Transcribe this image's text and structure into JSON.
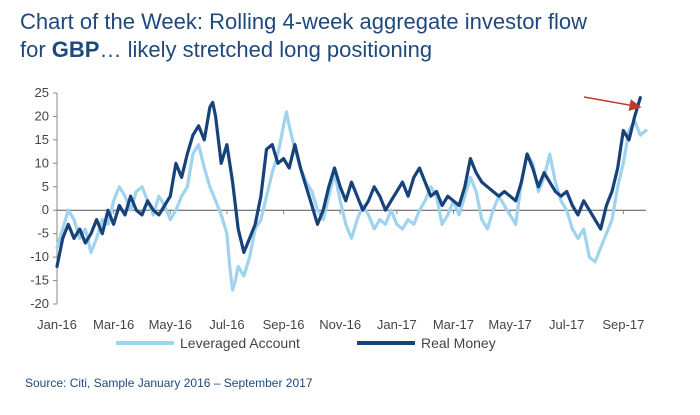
{
  "title": {
    "line1": "Chart of the Week:  Rolling 4-week aggregate investor flow",
    "line2_prefix": "for ",
    "line2_bold": "GBP",
    "line2_suffix": "… likely stretched long positioning"
  },
  "source": "Source: Citi, Sample January 2016 – September 2017",
  "colors": {
    "leveraged": "#9fd3ee",
    "real_money": "#17427a",
    "arrow": "#c0392b",
    "zero_line": "#555555"
  },
  "chart_data": {
    "type": "line",
    "title": "Rolling 4-week aggregate investor flow for GBP",
    "xlabel": "",
    "ylabel": "",
    "ylim": [
      -20,
      25
    ],
    "y_ticks": [
      25,
      20,
      15,
      10,
      5,
      0,
      -5,
      -10,
      -15,
      -20
    ],
    "x_tick_labels": [
      "Jan-16",
      "Mar-16",
      "May-16",
      "Jul-16",
      "Sep-16",
      "Nov-16",
      "Jan-17",
      "Mar-17",
      "May-17",
      "Jul-17",
      "Sep-17"
    ],
    "x_axis_note": "x values are months since Jan-2016 (0 = Jan-16, 20 = Sep-17)",
    "legend": [
      "Leveraged Account",
      "Real Money"
    ],
    "legend_position": "bottom",
    "annotation": "arrow pointing to latest Real Money peak",
    "series": [
      {
        "name": "Leveraged Account",
        "points": [
          [
            0,
            -8
          ],
          [
            0.2,
            -4
          ],
          [
            0.4,
            0
          ],
          [
            0.6,
            -2
          ],
          [
            0.8,
            -6
          ],
          [
            1.0,
            -4
          ],
          [
            1.2,
            -9
          ],
          [
            1.4,
            -6
          ],
          [
            1.6,
            -2
          ],
          [
            1.8,
            -3
          ],
          [
            2.0,
            2
          ],
          [
            2.2,
            5
          ],
          [
            2.4,
            3
          ],
          [
            2.6,
            0
          ],
          [
            2.8,
            4
          ],
          [
            3.0,
            5
          ],
          [
            3.2,
            2
          ],
          [
            3.4,
            -1
          ],
          [
            3.6,
            3
          ],
          [
            3.8,
            1
          ],
          [
            4.0,
            -2
          ],
          [
            4.2,
            0
          ],
          [
            4.4,
            3
          ],
          [
            4.6,
            5
          ],
          [
            4.8,
            12
          ],
          [
            5.0,
            14
          ],
          [
            5.2,
            9
          ],
          [
            5.4,
            5
          ],
          [
            5.6,
            2
          ],
          [
            5.8,
            -1
          ],
          [
            6.0,
            -5
          ],
          [
            6.1,
            -12
          ],
          [
            6.2,
            -17
          ],
          [
            6.3,
            -15
          ],
          [
            6.4,
            -12
          ],
          [
            6.6,
            -14
          ],
          [
            6.8,
            -10
          ],
          [
            7.0,
            -4
          ],
          [
            7.2,
            -2
          ],
          [
            7.4,
            3
          ],
          [
            7.6,
            8
          ],
          [
            7.8,
            12
          ],
          [
            8.0,
            18
          ],
          [
            8.1,
            21
          ],
          [
            8.2,
            18
          ],
          [
            8.4,
            13
          ],
          [
            8.6,
            9
          ],
          [
            8.8,
            6
          ],
          [
            9.0,
            4
          ],
          [
            9.2,
            0
          ],
          [
            9.4,
            -2
          ],
          [
            9.6,
            3
          ],
          [
            9.8,
            8
          ],
          [
            10.0,
            2
          ],
          [
            10.2,
            -3
          ],
          [
            10.4,
            -6
          ],
          [
            10.6,
            -2
          ],
          [
            10.8,
            1
          ],
          [
            11.0,
            -1
          ],
          [
            11.2,
            -4
          ],
          [
            11.4,
            -2
          ],
          [
            11.6,
            -3
          ],
          [
            11.8,
            0
          ],
          [
            12.0,
            -3
          ],
          [
            12.2,
            -4
          ],
          [
            12.4,
            -2
          ],
          [
            12.6,
            -3
          ],
          [
            12.8,
            0
          ],
          [
            13.0,
            2
          ],
          [
            13.2,
            5
          ],
          [
            13.4,
            3
          ],
          [
            13.6,
            -3
          ],
          [
            13.8,
            -1
          ],
          [
            14.0,
            2
          ],
          [
            14.2,
            -1
          ],
          [
            14.4,
            3
          ],
          [
            14.6,
            7
          ],
          [
            14.8,
            4
          ],
          [
            15.0,
            -2
          ],
          [
            15.2,
            -4
          ],
          [
            15.4,
            0
          ],
          [
            15.6,
            3
          ],
          [
            15.8,
            1
          ],
          [
            16.0,
            -1
          ],
          [
            16.2,
            -3
          ],
          [
            16.4,
            6
          ],
          [
            16.6,
            12
          ],
          [
            16.8,
            10
          ],
          [
            17.0,
            4
          ],
          [
            17.2,
            7
          ],
          [
            17.4,
            12
          ],
          [
            17.6,
            6
          ],
          [
            17.8,
            2
          ],
          [
            18.0,
            0
          ],
          [
            18.2,
            -4
          ],
          [
            18.4,
            -6
          ],
          [
            18.6,
            -4
          ],
          [
            18.8,
            -10
          ],
          [
            19.0,
            -11
          ],
          [
            19.2,
            -8
          ],
          [
            19.4,
            -5
          ],
          [
            19.6,
            -2
          ],
          [
            19.8,
            5
          ],
          [
            20.0,
            10
          ],
          [
            20.2,
            17
          ],
          [
            20.4,
            19
          ],
          [
            20.6,
            16
          ],
          [
            20.8,
            17
          ]
        ]
      },
      {
        "name": "Real Money",
        "points": [
          [
            0,
            -12
          ],
          [
            0.2,
            -6
          ],
          [
            0.4,
            -3
          ],
          [
            0.6,
            -6
          ],
          [
            0.8,
            -4
          ],
          [
            1.0,
            -7
          ],
          [
            1.2,
            -5
          ],
          [
            1.4,
            -2
          ],
          [
            1.6,
            -5
          ],
          [
            1.8,
            0
          ],
          [
            2.0,
            -3
          ],
          [
            2.2,
            1
          ],
          [
            2.4,
            -1
          ],
          [
            2.6,
            3
          ],
          [
            2.8,
            0
          ],
          [
            3.0,
            -1
          ],
          [
            3.2,
            2
          ],
          [
            3.4,
            0
          ],
          [
            3.6,
            -1
          ],
          [
            3.8,
            1
          ],
          [
            4.0,
            3
          ],
          [
            4.2,
            10
          ],
          [
            4.4,
            7
          ],
          [
            4.6,
            12
          ],
          [
            4.8,
            16
          ],
          [
            5.0,
            18
          ],
          [
            5.2,
            15
          ],
          [
            5.4,
            22
          ],
          [
            5.5,
            23
          ],
          [
            5.6,
            20
          ],
          [
            5.8,
            10
          ],
          [
            6.0,
            14
          ],
          [
            6.2,
            6
          ],
          [
            6.4,
            -4
          ],
          [
            6.6,
            -9
          ],
          [
            6.8,
            -6
          ],
          [
            7.0,
            -3
          ],
          [
            7.2,
            3
          ],
          [
            7.4,
            13
          ],
          [
            7.6,
            14
          ],
          [
            7.8,
            10
          ],
          [
            8.0,
            11
          ],
          [
            8.2,
            9
          ],
          [
            8.4,
            14
          ],
          [
            8.6,
            9
          ],
          [
            8.8,
            5
          ],
          [
            9.0,
            1
          ],
          [
            9.2,
            -3
          ],
          [
            9.4,
            0
          ],
          [
            9.6,
            5
          ],
          [
            9.8,
            9
          ],
          [
            10.0,
            5
          ],
          [
            10.2,
            2
          ],
          [
            10.4,
            6
          ],
          [
            10.6,
            3
          ],
          [
            10.8,
            0
          ],
          [
            11.0,
            2
          ],
          [
            11.2,
            5
          ],
          [
            11.4,
            3
          ],
          [
            11.6,
            0
          ],
          [
            11.8,
            2
          ],
          [
            12.0,
            4
          ],
          [
            12.2,
            6
          ],
          [
            12.4,
            3
          ],
          [
            12.6,
            7
          ],
          [
            12.8,
            9
          ],
          [
            13.0,
            6
          ],
          [
            13.2,
            3
          ],
          [
            13.4,
            4
          ],
          [
            13.6,
            1
          ],
          [
            13.8,
            3
          ],
          [
            14.0,
            2
          ],
          [
            14.2,
            1
          ],
          [
            14.4,
            5
          ],
          [
            14.6,
            11
          ],
          [
            14.8,
            8
          ],
          [
            15.0,
            6
          ],
          [
            15.2,
            5
          ],
          [
            15.4,
            4
          ],
          [
            15.6,
            3
          ],
          [
            15.8,
            4
          ],
          [
            16.0,
            3
          ],
          [
            16.2,
            2
          ],
          [
            16.4,
            6
          ],
          [
            16.6,
            12
          ],
          [
            16.8,
            9
          ],
          [
            17.0,
            5
          ],
          [
            17.2,
            8
          ],
          [
            17.4,
            6
          ],
          [
            17.6,
            4
          ],
          [
            17.8,
            3
          ],
          [
            18.0,
            4
          ],
          [
            18.2,
            1
          ],
          [
            18.4,
            -1
          ],
          [
            18.6,
            2
          ],
          [
            18.8,
            0
          ],
          [
            19.0,
            -2
          ],
          [
            19.2,
            -4
          ],
          [
            19.4,
            1
          ],
          [
            19.6,
            4
          ],
          [
            19.8,
            9
          ],
          [
            20.0,
            17
          ],
          [
            20.2,
            15
          ],
          [
            20.4,
            20
          ],
          [
            20.6,
            24
          ]
        ]
      }
    ]
  }
}
